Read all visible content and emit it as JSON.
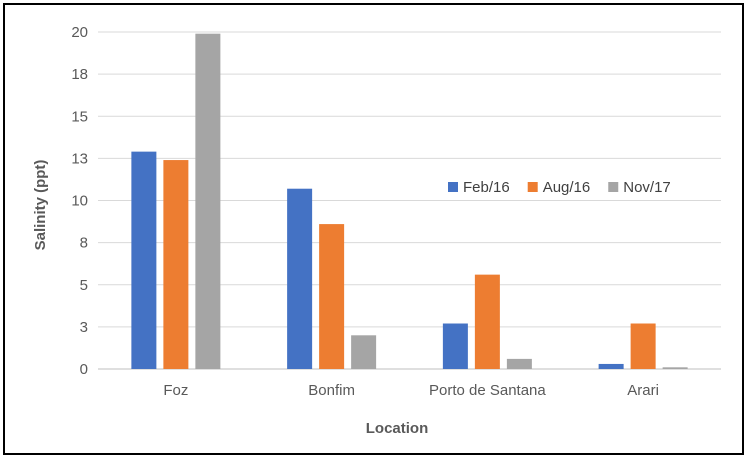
{
  "chart_data": {
    "type": "bar",
    "categories": [
      "Foz",
      "Bonfim",
      "Porto de Santana",
      "Arari"
    ],
    "series": [
      {
        "name": "Feb/16",
        "color": "#4472C4",
        "values": [
          12.9,
          10.7,
          2.7,
          0.3
        ]
      },
      {
        "name": "Aug/16",
        "color": "#ED7D31",
        "values": [
          12.4,
          8.6,
          5.6,
          2.7
        ]
      },
      {
        "name": "Nov/17",
        "color": "#A5A5A5",
        "values": [
          19.9,
          2.0,
          0.6,
          0.1
        ]
      }
    ],
    "yticks": [
      {
        "value": 0,
        "label": "0"
      },
      {
        "value": 2.5,
        "label": "3"
      },
      {
        "value": 5,
        "label": "5"
      },
      {
        "value": 7.5,
        "label": "8"
      },
      {
        "value": 10,
        "label": "10"
      },
      {
        "value": 12.5,
        "label": "13"
      },
      {
        "value": 15,
        "label": "15"
      },
      {
        "value": 17.5,
        "label": "18"
      },
      {
        "value": 20,
        "label": "20"
      }
    ],
    "ylim": [
      0,
      20
    ],
    "xlabel": "Location",
    "ylabel": "Salinity (ppt)",
    "title": "",
    "grid": true,
    "legend_position": "right-center"
  }
}
